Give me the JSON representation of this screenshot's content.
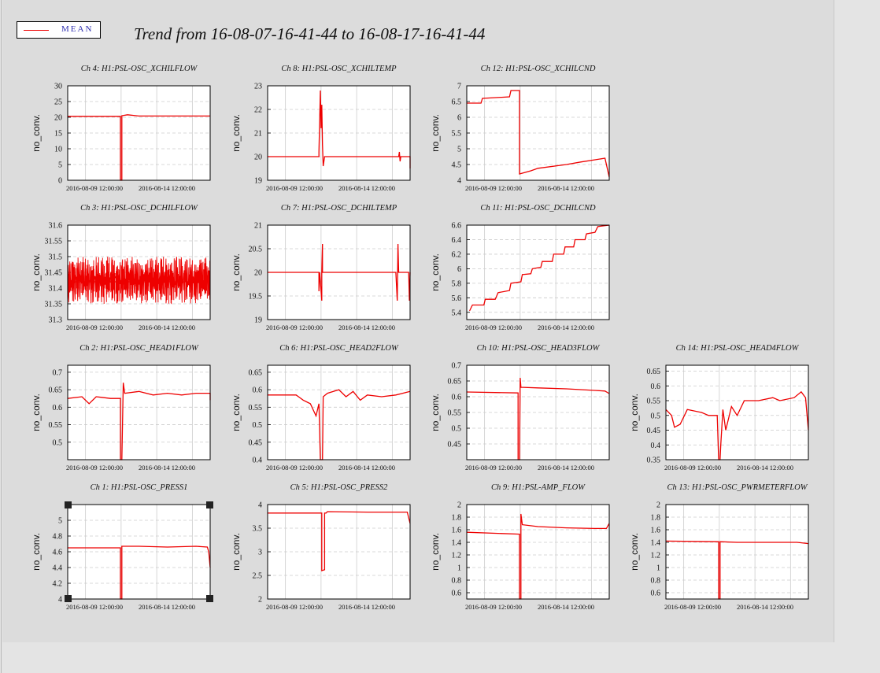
{
  "title": "Trend from 16-08-07-16-41-44 to 16-08-17-16-41-44",
  "legend": {
    "label": "MEAN",
    "color": "#ee0000"
  },
  "colors": {
    "series": "#ee0000",
    "grid": "#cccccc",
    "frame": "#000000",
    "plot_bg": "#ffffff"
  },
  "chart_data": [
    {
      "type": "line",
      "title": "Ch 4: H1:PSL-OSC_XCHILFLOW",
      "ylabel": "no_conv.",
      "ylim": [
        0,
        30
      ],
      "yticks": [
        "0",
        "5",
        "10",
        "15",
        "20",
        "25",
        "30"
      ],
      "xticks": [
        "2016-08-09 12:00:00",
        "2016-08-14 12:00:00"
      ],
      "xlim": [
        0,
        10
      ],
      "series": [
        {
          "values": [
            [
              0,
              20.3
            ],
            [
              3.7,
              20.3
            ],
            [
              3.7,
              0
            ],
            [
              3.8,
              0
            ],
            [
              3.8,
              20.5
            ],
            [
              4.2,
              20.8
            ],
            [
              5,
              20.4
            ],
            [
              10,
              20.4
            ]
          ]
        }
      ]
    },
    {
      "type": "line",
      "title": "Ch 8: H1:PSL-OSC_XCHILTEMP",
      "ylabel": "no_conv.",
      "ylim": [
        19,
        23
      ],
      "yticks": [
        "19",
        "20",
        "21",
        "22",
        "23"
      ],
      "xticks": [
        "2016-08-09 12:00:00",
        "2016-08-14 12:00:00"
      ],
      "xlim": [
        0,
        10
      ],
      "series": [
        {
          "values": [
            [
              0,
              20
            ],
            [
              3.6,
              20
            ],
            [
              3.6,
              20.2
            ],
            [
              3.7,
              22.8
            ],
            [
              3.75,
              21.2
            ],
            [
              3.8,
              22.2
            ],
            [
              3.85,
              20.5
            ],
            [
              3.9,
              19.6
            ],
            [
              4,
              20
            ],
            [
              9.2,
              20
            ],
            [
              9.25,
              20.2
            ],
            [
              9.3,
              19.8
            ],
            [
              9.35,
              20
            ],
            [
              10,
              20
            ],
            [
              10,
              19.5
            ]
          ]
        }
      ]
    },
    {
      "type": "line",
      "title": "Ch 12: H1:PSL-OSC_XCHILCND",
      "ylabel": "no_conv.",
      "ylim": [
        4,
        7
      ],
      "yticks": [
        "4",
        "4.5",
        "5",
        "5.5",
        "6",
        "6.5",
        "7"
      ],
      "xticks": [
        "2016-08-09 12:00:00",
        "2016-08-14 12:00:00"
      ],
      "xlim": [
        0,
        10
      ],
      "series": [
        {
          "values": [
            [
              0,
              6.45
            ],
            [
              1,
              6.45
            ],
            [
              1.1,
              6.6
            ],
            [
              3,
              6.65
            ],
            [
              3.1,
              6.85
            ],
            [
              3.7,
              6.85
            ],
            [
              3.7,
              4.2
            ],
            [
              4.5,
              4.3
            ],
            [
              5,
              4.38
            ],
            [
              7,
              4.5
            ],
            [
              8,
              4.58
            ],
            [
              9,
              4.65
            ],
            [
              9.7,
              4.7
            ],
            [
              10,
              4.1
            ]
          ]
        }
      ]
    },
    {
      "type": "line",
      "title": "Ch 3: H1:PSL-OSC_DCHILFLOW",
      "ylabel": "no_conv.",
      "ylim": [
        31.3,
        31.6
      ],
      "yticks": [
        "31.3",
        "31.35",
        "31.4",
        "31.45",
        "31.5",
        "31.55",
        "31.6"
      ],
      "xticks": [
        "2016-08-09 12:00:00",
        "2016-08-14 12:00:00"
      ],
      "xlim": [
        0,
        10
      ],
      "noise_band": [
        31.35,
        31.5
      ],
      "series": [
        {
          "values": [
            [
              0,
              31.42
            ],
            [
              10,
              31.42
            ]
          ]
        }
      ]
    },
    {
      "type": "line",
      "title": "Ch 7: H1:PSL-OSC_DCHILTEMP",
      "ylabel": "no_conv.",
      "ylim": [
        19,
        21
      ],
      "yticks": [
        "19",
        "19.5",
        "20",
        "20.5",
        "21"
      ],
      "xticks": [
        "2016-08-09 12:00:00",
        "2016-08-14 12:00:00"
      ],
      "xlim": [
        0,
        10
      ],
      "series": [
        {
          "values": [
            [
              0,
              20
            ],
            [
              3.6,
              20
            ],
            [
              3.6,
              19.6
            ],
            [
              3.65,
              20
            ],
            [
              3.8,
              19.4
            ],
            [
              3.8,
              20
            ],
            [
              3.85,
              20.6
            ],
            [
              3.85,
              20
            ],
            [
              9,
              20
            ],
            [
              9.1,
              19.4
            ],
            [
              9.15,
              20.6
            ],
            [
              9.2,
              20
            ],
            [
              9.9,
              20
            ],
            [
              9.95,
              19.4
            ],
            [
              10,
              20
            ]
          ]
        }
      ]
    },
    {
      "type": "line",
      "title": "Ch 11: H1:PSL-OSC_DCHILCND",
      "ylabel": "no_conv.",
      "ylim": [
        5.3,
        6.6
      ],
      "yticks": [
        "5.4",
        "5.6",
        "5.8",
        "6",
        "6.2",
        "6.4",
        "6.6"
      ],
      "xticks": [
        "2016-08-09 12:00:00",
        "2016-08-14 12:00:00"
      ],
      "xlim": [
        0,
        10
      ],
      "series": [
        {
          "values": [
            [
              0.2,
              5.42
            ],
            [
              0.4,
              5.5
            ],
            [
              1.2,
              5.5
            ],
            [
              1.3,
              5.58
            ],
            [
              2,
              5.58
            ],
            [
              2.2,
              5.67
            ],
            [
              3,
              5.7
            ],
            [
              3.1,
              5.8
            ],
            [
              3.8,
              5.82
            ],
            [
              3.9,
              5.92
            ],
            [
              4.5,
              5.93
            ],
            [
              4.6,
              6
            ],
            [
              5.2,
              6.02
            ],
            [
              5.3,
              6.1
            ],
            [
              6,
              6.1
            ],
            [
              6.1,
              6.2
            ],
            [
              6.8,
              6.2
            ],
            [
              6.9,
              6.3
            ],
            [
              7.5,
              6.3
            ],
            [
              7.6,
              6.4
            ],
            [
              8.3,
              6.4
            ],
            [
              8.4,
              6.48
            ],
            [
              9,
              6.5
            ],
            [
              9.2,
              6.58
            ],
            [
              10,
              6.6
            ]
          ]
        }
      ]
    },
    {
      "type": "line",
      "title": "Ch 2: H1:PSL-OSC_HEAD1FLOW",
      "ylabel": "no_conv.",
      "ylim": [
        0.45,
        0.72
      ],
      "yticks": [
        "0.5",
        "0.55",
        "0.6",
        "0.65",
        "0.7"
      ],
      "xticks": [
        "2016-08-09 12:00:00",
        "2016-08-14 12:00:00"
      ],
      "xlim": [
        0,
        10
      ],
      "series": [
        {
          "values": [
            [
              0,
              0.625
            ],
            [
              1,
              0.63
            ],
            [
              1.5,
              0.61
            ],
            [
              2,
              0.63
            ],
            [
              3,
              0.625
            ],
            [
              3.7,
              0.625
            ],
            [
              3.7,
              0.45
            ],
            [
              3.8,
              0.45
            ],
            [
              3.9,
              0.67
            ],
            [
              4,
              0.64
            ],
            [
              5,
              0.645
            ],
            [
              6,
              0.635
            ],
            [
              7,
              0.64
            ],
            [
              8,
              0.635
            ],
            [
              9,
              0.64
            ],
            [
              10,
              0.64
            ],
            [
              10,
              0.62
            ]
          ]
        }
      ]
    },
    {
      "type": "line",
      "title": "Ch 6: H1:PSL-OSC_HEAD2FLOW",
      "ylabel": "no_conv.",
      "ylim": [
        0.4,
        0.67
      ],
      "yticks": [
        "0.4",
        "0.45",
        "0.5",
        "0.55",
        "0.6",
        "0.65"
      ],
      "xticks": [
        "2016-08-09 12:00:00",
        "2016-08-14 12:00:00"
      ],
      "xlim": [
        0,
        10
      ],
      "series": [
        {
          "values": [
            [
              0,
              0.585
            ],
            [
              2,
              0.585
            ],
            [
              2.5,
              0.57
            ],
            [
              3,
              0.56
            ],
            [
              3.4,
              0.525
            ],
            [
              3.6,
              0.56
            ],
            [
              3.7,
              0.4
            ],
            [
              3.85,
              0.4
            ],
            [
              3.9,
              0.58
            ],
            [
              4.2,
              0.59
            ],
            [
              5,
              0.6
            ],
            [
              5.5,
              0.58
            ],
            [
              6,
              0.595
            ],
            [
              6.5,
              0.57
            ],
            [
              7,
              0.585
            ],
            [
              8,
              0.58
            ],
            [
              9,
              0.585
            ],
            [
              10,
              0.595
            ]
          ]
        }
      ]
    },
    {
      "type": "line",
      "title": "Ch 10: H1:PSL-OSC_HEAD3FLOW",
      "ylabel": "no_conv.",
      "ylim": [
        0.4,
        0.7
      ],
      "yticks": [
        "0.45",
        "0.5",
        "0.55",
        "0.6",
        "0.65",
        "0.7"
      ],
      "xticks": [
        "2016-08-09 12:00:00",
        "2016-08-14 12:00:00"
      ],
      "xlim": [
        0,
        10
      ],
      "series": [
        {
          "values": [
            [
              0,
              0.615
            ],
            [
              3.6,
              0.612
            ],
            [
              3.6,
              0.4
            ],
            [
              3.7,
              0.4
            ],
            [
              3.75,
              0.66
            ],
            [
              3.8,
              0.63
            ],
            [
              5,
              0.628
            ],
            [
              7,
              0.625
            ],
            [
              9,
              0.62
            ],
            [
              9.7,
              0.618
            ],
            [
              10,
              0.61
            ]
          ]
        }
      ]
    },
    {
      "type": "line",
      "title": "Ch 14: H1:PSL-OSC_HEAD4FLOW",
      "ylabel": "no_conv.",
      "ylim": [
        0.35,
        0.67
      ],
      "yticks": [
        "0.35",
        "0.4",
        "0.45",
        "0.5",
        "0.55",
        "0.6",
        "0.65"
      ],
      "xticks": [
        "2016-08-09 12:00:00",
        "2016-08-14 12:00:00"
      ],
      "xlim": [
        0,
        10
      ],
      "series": [
        {
          "values": [
            [
              0,
              0.52
            ],
            [
              0.4,
              0.5
            ],
            [
              0.6,
              0.46
            ],
            [
              1,
              0.47
            ],
            [
              1.5,
              0.52
            ],
            [
              2.5,
              0.51
            ],
            [
              3,
              0.5
            ],
            [
              3.6,
              0.5
            ],
            [
              3.7,
              0.35
            ],
            [
              3.8,
              0.35
            ],
            [
              3.85,
              0.4
            ],
            [
              4,
              0.52
            ],
            [
              4.2,
              0.45
            ],
            [
              4.6,
              0.53
            ],
            [
              5,
              0.5
            ],
            [
              5.5,
              0.55
            ],
            [
              6.5,
              0.55
            ],
            [
              7.5,
              0.56
            ],
            [
              8,
              0.55
            ],
            [
              9,
              0.56
            ],
            [
              9.5,
              0.58
            ],
            [
              9.8,
              0.56
            ],
            [
              10,
              0.45
            ]
          ]
        }
      ]
    },
    {
      "type": "line",
      "title": "Ch 1: H1:PSL-OSC_PRESS1",
      "ylabel": "no_conv.",
      "ylim": [
        4,
        5.2
      ],
      "yticks": [
        "4",
        "4.2",
        "4.4",
        "4.6",
        "4.8",
        "5"
      ],
      "xticks": [
        "2016-08-09 12:00:00",
        "2016-08-14 12:00:00"
      ],
      "xlim": [
        0,
        10
      ],
      "series": [
        {
          "values": [
            [
              0,
              4.65
            ],
            [
              3.7,
              4.65
            ],
            [
              3.7,
              4
            ],
            [
              3.8,
              4
            ],
            [
              3.8,
              4.67
            ],
            [
              5,
              4.67
            ],
            [
              7,
              4.66
            ],
            [
              9,
              4.67
            ],
            [
              9.8,
              4.66
            ],
            [
              9.9,
              4.6
            ],
            [
              10,
              4.4
            ]
          ]
        }
      ]
    },
    {
      "type": "line",
      "title": "Ch 5: H1:PSL-OSC_PRESS2",
      "ylabel": "no_conv.",
      "ylim": [
        2,
        4
      ],
      "yticks": [
        "2",
        "2.5",
        "3",
        "3.5",
        "4"
      ],
      "xticks": [
        "2016-08-09 12:00:00",
        "2016-08-14 12:00:00"
      ],
      "xlim": [
        0,
        10
      ],
      "series": [
        {
          "values": [
            [
              0,
              3.82
            ],
            [
              3.8,
              3.82
            ],
            [
              3.8,
              2.6
            ],
            [
              4,
              2.62
            ],
            [
              4,
              3.82
            ],
            [
              4.1,
              3.82
            ],
            [
              4.2,
              3.85
            ],
            [
              7,
              3.84
            ],
            [
              9.8,
              3.84
            ],
            [
              10,
              3.6
            ]
          ]
        }
      ]
    },
    {
      "type": "line",
      "title": "Ch 9: H1:PSL-AMP_FLOW",
      "ylabel": "no_conv.",
      "ylim": [
        0.5,
        2
      ],
      "yticks": [
        "0.6",
        "0.8",
        "1",
        "1.2",
        "1.4",
        "1.6",
        "1.8",
        "2"
      ],
      "xticks": [
        "2016-08-09 12:00:00",
        "2016-08-14 12:00:00"
      ],
      "xlim": [
        0,
        10
      ],
      "series": [
        {
          "values": [
            [
              0,
              1.56
            ],
            [
              3.7,
              1.53
            ],
            [
              3.7,
              0.5
            ],
            [
              3.8,
              0.5
            ],
            [
              3.8,
              1.85
            ],
            [
              3.9,
              1.68
            ],
            [
              5,
              1.65
            ],
            [
              7,
              1.63
            ],
            [
              9,
              1.62
            ],
            [
              9.8,
              1.62
            ],
            [
              10,
              1.7
            ]
          ]
        }
      ]
    },
    {
      "type": "line",
      "title": "Ch 13: H1:PSL-OSC_PWRMETERFLOW",
      "ylabel": "no_conv.",
      "ylim": [
        0.5,
        2
      ],
      "yticks": [
        "0.6",
        "0.8",
        "1",
        "1.2",
        "1.4",
        "1.6",
        "1.8",
        "2"
      ],
      "xticks": [
        "2016-08-09 12:00:00",
        "2016-08-14 12:00:00"
      ],
      "xlim": [
        0,
        10
      ],
      "series": [
        {
          "values": [
            [
              0,
              1.42
            ],
            [
              3.7,
              1.41
            ],
            [
              3.7,
              0.5
            ],
            [
              3.8,
              0.5
            ],
            [
              3.8,
              1.41
            ],
            [
              5,
              1.4
            ],
            [
              7,
              1.4
            ],
            [
              9,
              1.4
            ],
            [
              9.2,
              1.4
            ],
            [
              10,
              1.38
            ]
          ]
        }
      ]
    }
  ]
}
